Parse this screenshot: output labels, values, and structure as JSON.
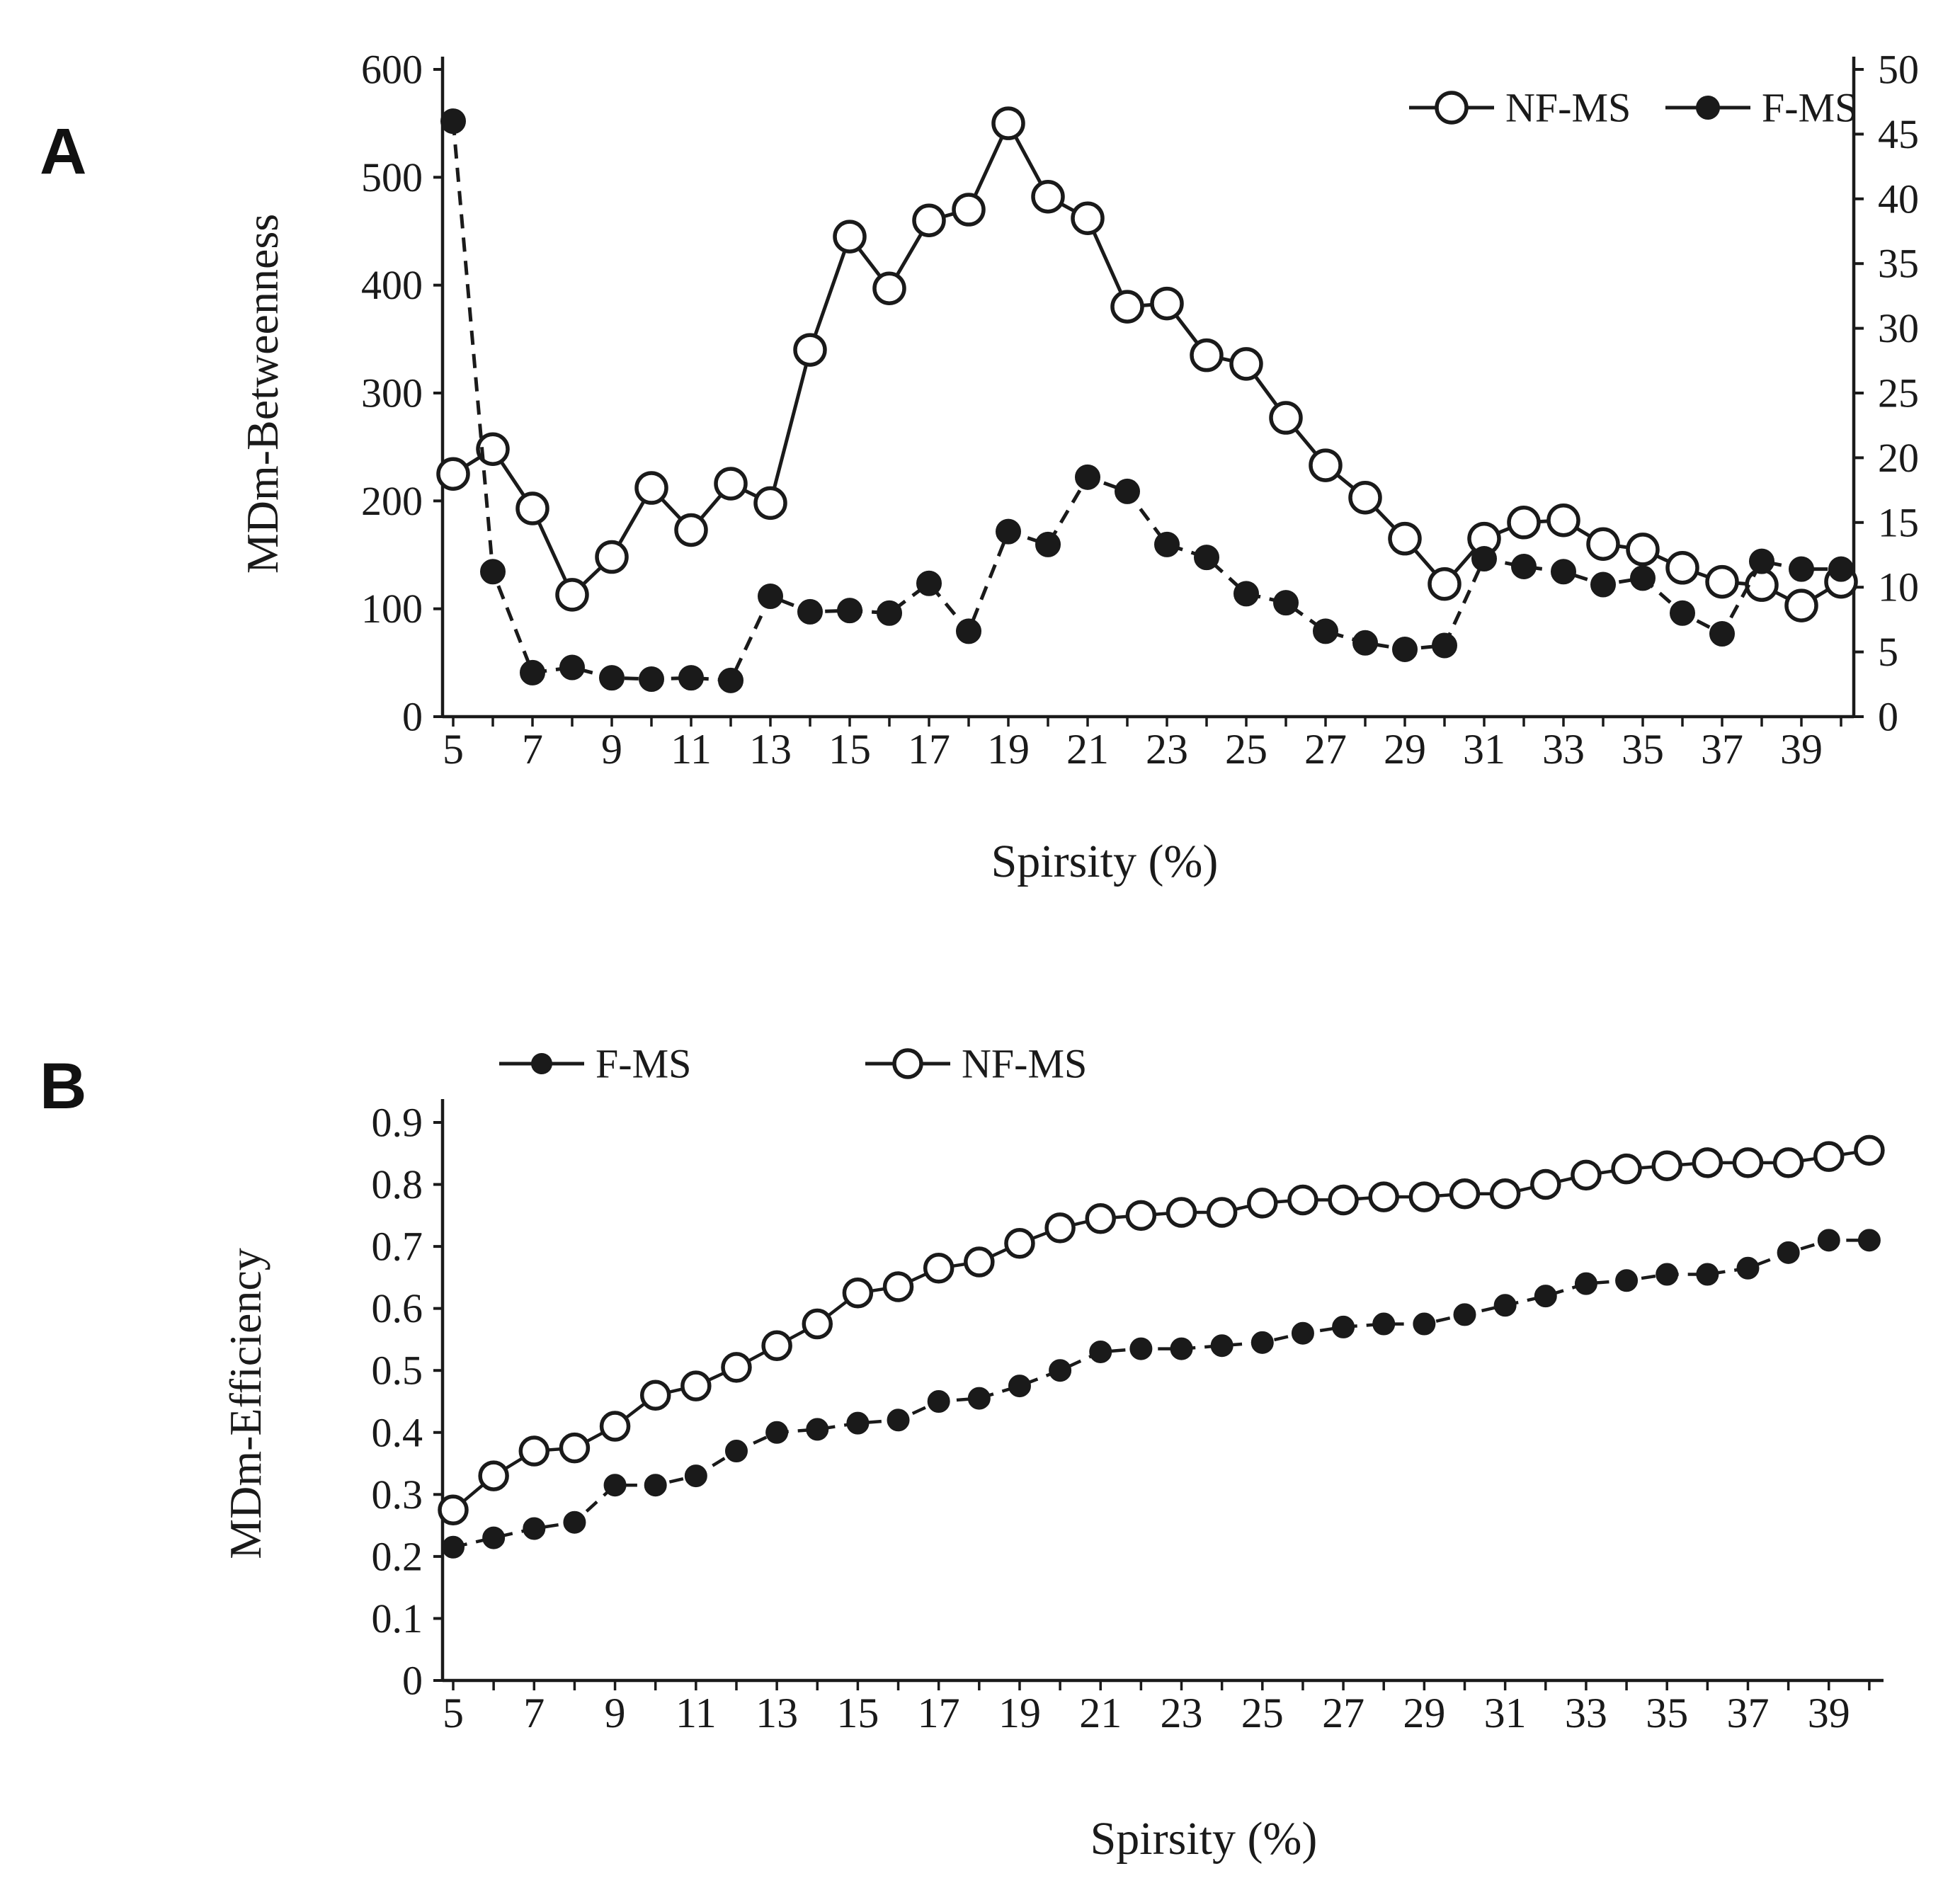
{
  "figure": {
    "panels": [
      {
        "label": "A"
      },
      {
        "label": "B"
      }
    ],
    "background": "#ffffff"
  },
  "colors": {
    "ink": "#1a1a1a",
    "background": "#ffffff"
  },
  "chart_data": [
    {
      "type": "line",
      "panel": "A",
      "title": "",
      "xlabel": "Spirsity (%)",
      "ylabel_left": "MDm-Betweenness",
      "ylabel_right": "",
      "x": [
        5,
        6,
        7,
        8,
        9,
        10,
        11,
        12,
        13,
        14,
        15,
        16,
        17,
        18,
        19,
        20,
        21,
        22,
        23,
        24,
        25,
        26,
        27,
        28,
        29,
        30,
        31,
        32,
        33,
        34,
        35,
        36,
        37,
        38,
        39,
        40
      ],
      "x_tick_labels": [
        "5",
        "7",
        "9",
        "11",
        "13",
        "15",
        "17",
        "19",
        "21",
        "23",
        "25",
        "27",
        "29",
        "31",
        "33",
        "35",
        "37",
        "39"
      ],
      "yleft": {
        "lim": [
          0,
          600
        ],
        "ticks": [
          0,
          100,
          200,
          300,
          400,
          500,
          600
        ],
        "tick_labels": [
          "0",
          "100",
          "200",
          "300",
          "400",
          "500",
          "600"
        ]
      },
      "yright": {
        "lim": [
          0,
          50
        ],
        "ticks": [
          0,
          5,
          10,
          15,
          20,
          25,
          30,
          35,
          40,
          45,
          50
        ],
        "tick_labels": [
          "0",
          "5",
          "10",
          "15",
          "20",
          "25",
          "30",
          "35",
          "40",
          "45",
          "50"
        ]
      },
      "grid": false,
      "legend": {
        "position": "top-right",
        "items": [
          {
            "name": "NF-MS",
            "marker": "open-circle",
            "line": "solid"
          },
          {
            "name": "F-MS",
            "marker": "filled-circle",
            "line": "dashed"
          }
        ]
      },
      "series": [
        {
          "name": "NF-MS",
          "axis": "left",
          "marker": "open-circle",
          "line": "solid",
          "values": [
            225,
            248,
            193,
            113,
            148,
            212,
            173,
            216,
            198,
            340,
            445,
            397,
            460,
            470,
            550,
            482,
            462,
            380,
            383,
            335,
            327,
            277,
            233,
            203,
            165,
            123,
            165,
            180,
            182,
            160,
            155,
            138,
            125,
            122,
            103,
            125
          ]
        },
        {
          "name": "F-MS",
          "axis": "right",
          "marker": "filled-circle",
          "line": "dashed",
          "values": [
            46,
            11.2,
            3.4,
            3.8,
            3.0,
            2.9,
            3.0,
            2.8,
            9.3,
            8.1,
            8.2,
            8.0,
            10.3,
            6.6,
            14.3,
            13.3,
            18.5,
            17.4,
            13.3,
            12.3,
            9.5,
            8.8,
            6.6,
            5.7,
            5.2,
            5.5,
            12.2,
            11.6,
            11.2,
            10.2,
            10.7,
            8.0,
            6.4,
            12.0,
            11.4,
            11.4
          ]
        }
      ]
    },
    {
      "type": "line",
      "panel": "B",
      "title": "",
      "xlabel": "Spirsity (%)",
      "ylabel_left": "MDm-Efficiency",
      "x": [
        5,
        6,
        7,
        8,
        9,
        10,
        11,
        12,
        13,
        14,
        15,
        16,
        17,
        18,
        19,
        20,
        21,
        22,
        23,
        24,
        25,
        26,
        27,
        28,
        29,
        30,
        31,
        32,
        33,
        34,
        35,
        36,
        37,
        38,
        39,
        40
      ],
      "x_tick_labels": [
        "5",
        "7",
        "9",
        "11",
        "13",
        "15",
        "17",
        "19",
        "21",
        "23",
        "25",
        "27",
        "29",
        "31",
        "33",
        "35",
        "37",
        "39"
      ],
      "yleft": {
        "lim": [
          0,
          0.9
        ],
        "ticks": [
          0,
          0.1,
          0.2,
          0.3,
          0.4,
          0.5,
          0.6,
          0.7,
          0.8,
          0.9
        ],
        "tick_labels": [
          "0",
          "0.1",
          "0.2",
          "0.3",
          "0.4",
          "0.5",
          "0.6",
          "0.7",
          "0.8",
          "0.9"
        ]
      },
      "grid": false,
      "legend": {
        "position": "top-left",
        "items": [
          {
            "name": "F-MS",
            "marker": "filled-circle",
            "line": "dashed"
          },
          {
            "name": "NF-MS",
            "marker": "open-circle",
            "line": "solid"
          }
        ]
      },
      "series": [
        {
          "name": "F-MS",
          "axis": "left",
          "marker": "filled-circle",
          "line": "dashed",
          "values": [
            0.215,
            0.23,
            0.245,
            0.255,
            0.315,
            0.315,
            0.33,
            0.37,
            0.4,
            0.405,
            0.415,
            0.42,
            0.45,
            0.455,
            0.475,
            0.5,
            0.53,
            0.535,
            0.535,
            0.54,
            0.545,
            0.56,
            0.57,
            0.575,
            0.575,
            0.59,
            0.605,
            0.62,
            0.64,
            0.645,
            0.655,
            0.655,
            0.665,
            0.69,
            0.71,
            0.71
          ]
        },
        {
          "name": "NF-MS",
          "axis": "left",
          "marker": "open-circle",
          "line": "solid",
          "values": [
            0.275,
            0.33,
            0.37,
            0.375,
            0.41,
            0.46,
            0.475,
            0.505,
            0.54,
            0.575,
            0.625,
            0.635,
            0.665,
            0.675,
            0.705,
            0.73,
            0.745,
            0.75,
            0.755,
            0.755,
            0.77,
            0.775,
            0.775,
            0.78,
            0.78,
            0.785,
            0.785,
            0.8,
            0.815,
            0.825,
            0.83,
            0.835,
            0.835,
            0.835,
            0.845,
            0.855
          ]
        }
      ]
    }
  ]
}
